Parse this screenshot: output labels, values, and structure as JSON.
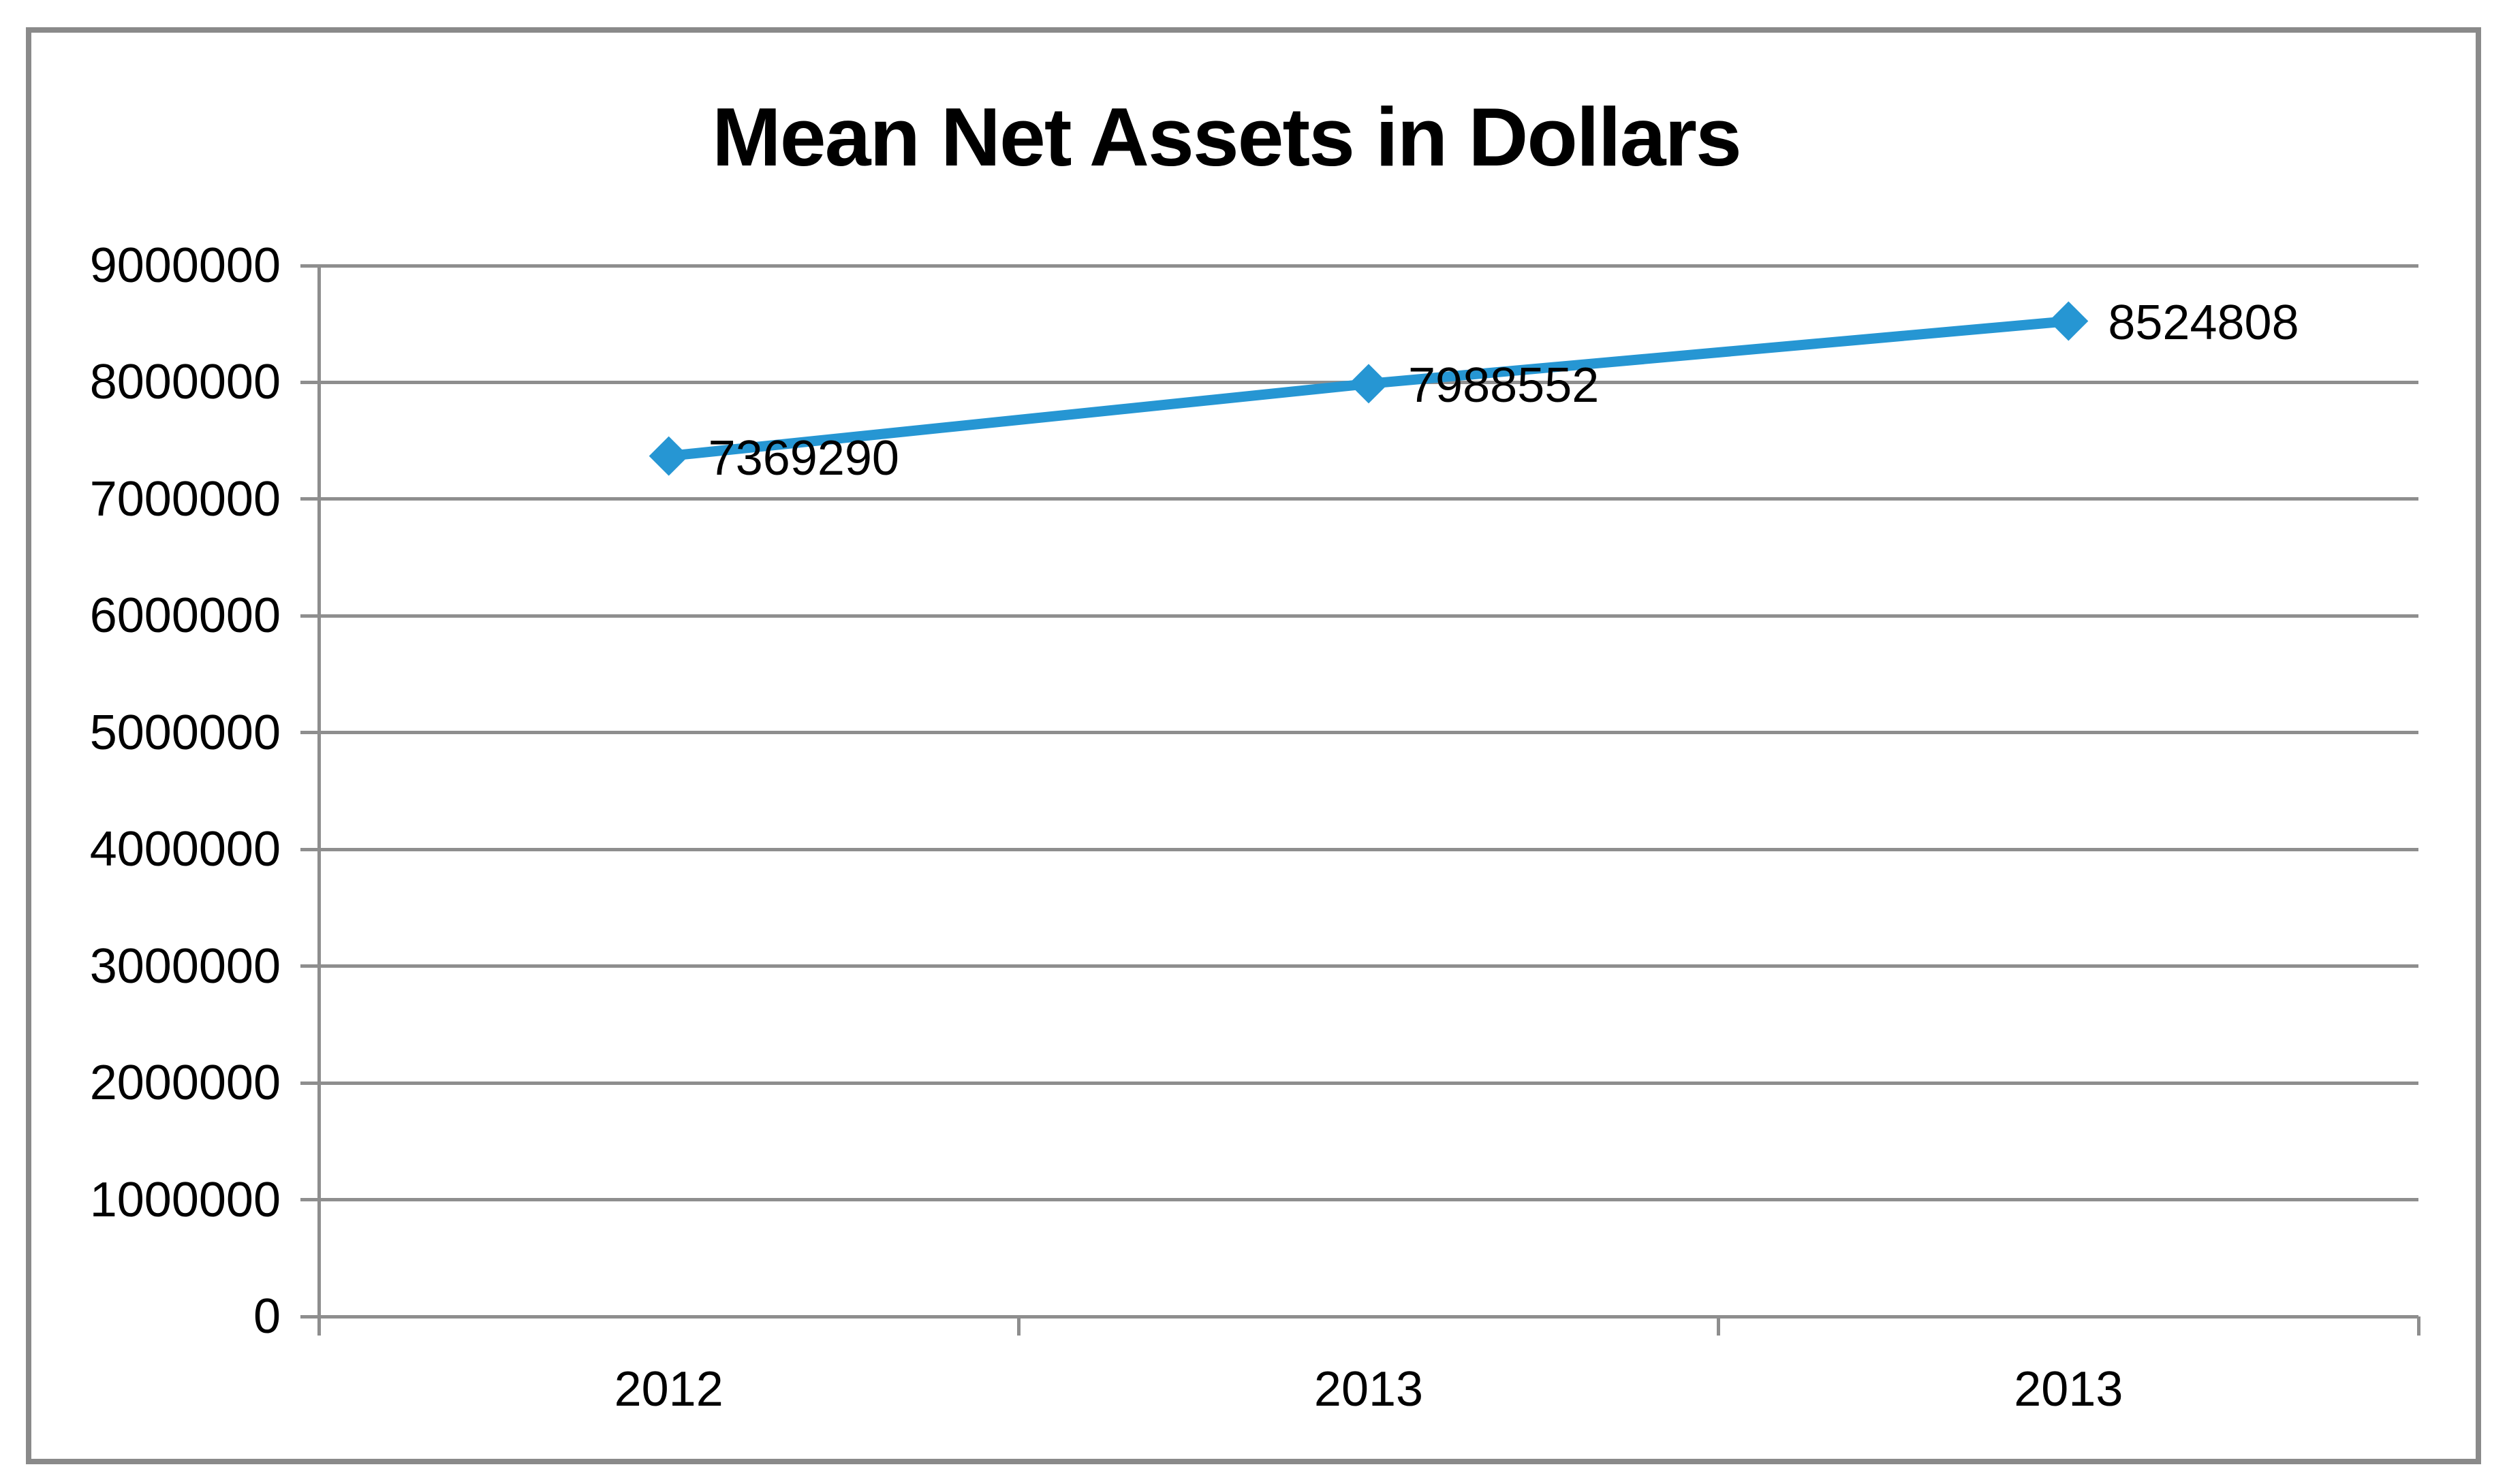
{
  "chart_data": {
    "type": "line",
    "title": "Mean Net Assets in Dollars",
    "categories": [
      "2012",
      "2013",
      "2013"
    ],
    "series": [
      {
        "values": [
          7369290,
          7988552,
          8524808
        ],
        "data_labels": [
          "7369290",
          "7988552",
          "8524808"
        ]
      }
    ],
    "xlabel": "",
    "ylabel": "",
    "ylim": [
      0,
      9000000
    ],
    "ytick_step": 1000000,
    "ytick_labels": [
      "0",
      "1000000",
      "2000000",
      "3000000",
      "4000000",
      "5000000",
      "6000000",
      "7000000",
      "8000000",
      "9000000"
    ],
    "grid": "horizontal",
    "legend": "none",
    "marker": "diamond",
    "data_label_position": "right",
    "colors": {
      "series": "#2696d3",
      "grid": "#8e8e8e",
      "axis": "#8e8e8e",
      "frame_border": "#8a8a8a",
      "text": "#000000"
    }
  }
}
